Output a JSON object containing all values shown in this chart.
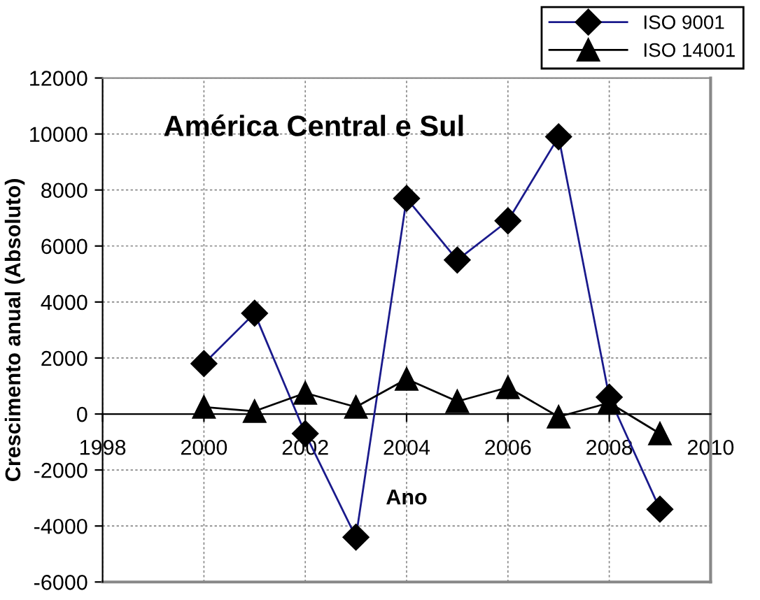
{
  "chart_data": {
    "type": "line",
    "title": "América Central e Sul",
    "xlabel": "Ano",
    "ylabel": "Crescimento anual (Absoluto)",
    "x": [
      2000,
      2001,
      2002,
      2003,
      2004,
      2005,
      2006,
      2007,
      2008,
      2009
    ],
    "series": [
      {
        "name": "ISO 9001",
        "color": "#1a1a8c",
        "marker": "diamond",
        "values": [
          1800,
          3600,
          -700,
          -4400,
          7700,
          5500,
          6900,
          9900,
          600,
          -3400
        ]
      },
      {
        "name": "ISO 14001",
        "color": "#000000",
        "marker": "triangle",
        "values": [
          250,
          100,
          750,
          250,
          1250,
          450,
          950,
          -100,
          400,
          -700
        ]
      }
    ],
    "xlim": [
      1998,
      2010
    ],
    "xticks": [
      1998,
      2000,
      2002,
      2004,
      2006,
      2008,
      2010
    ],
    "ylim": [
      -6000,
      12000
    ],
    "yticks": [
      -6000,
      -4000,
      -2000,
      0,
      2000,
      4000,
      6000,
      8000,
      10000,
      12000
    ],
    "grid": true,
    "legend": "top right",
    "line_style": "solid"
  }
}
